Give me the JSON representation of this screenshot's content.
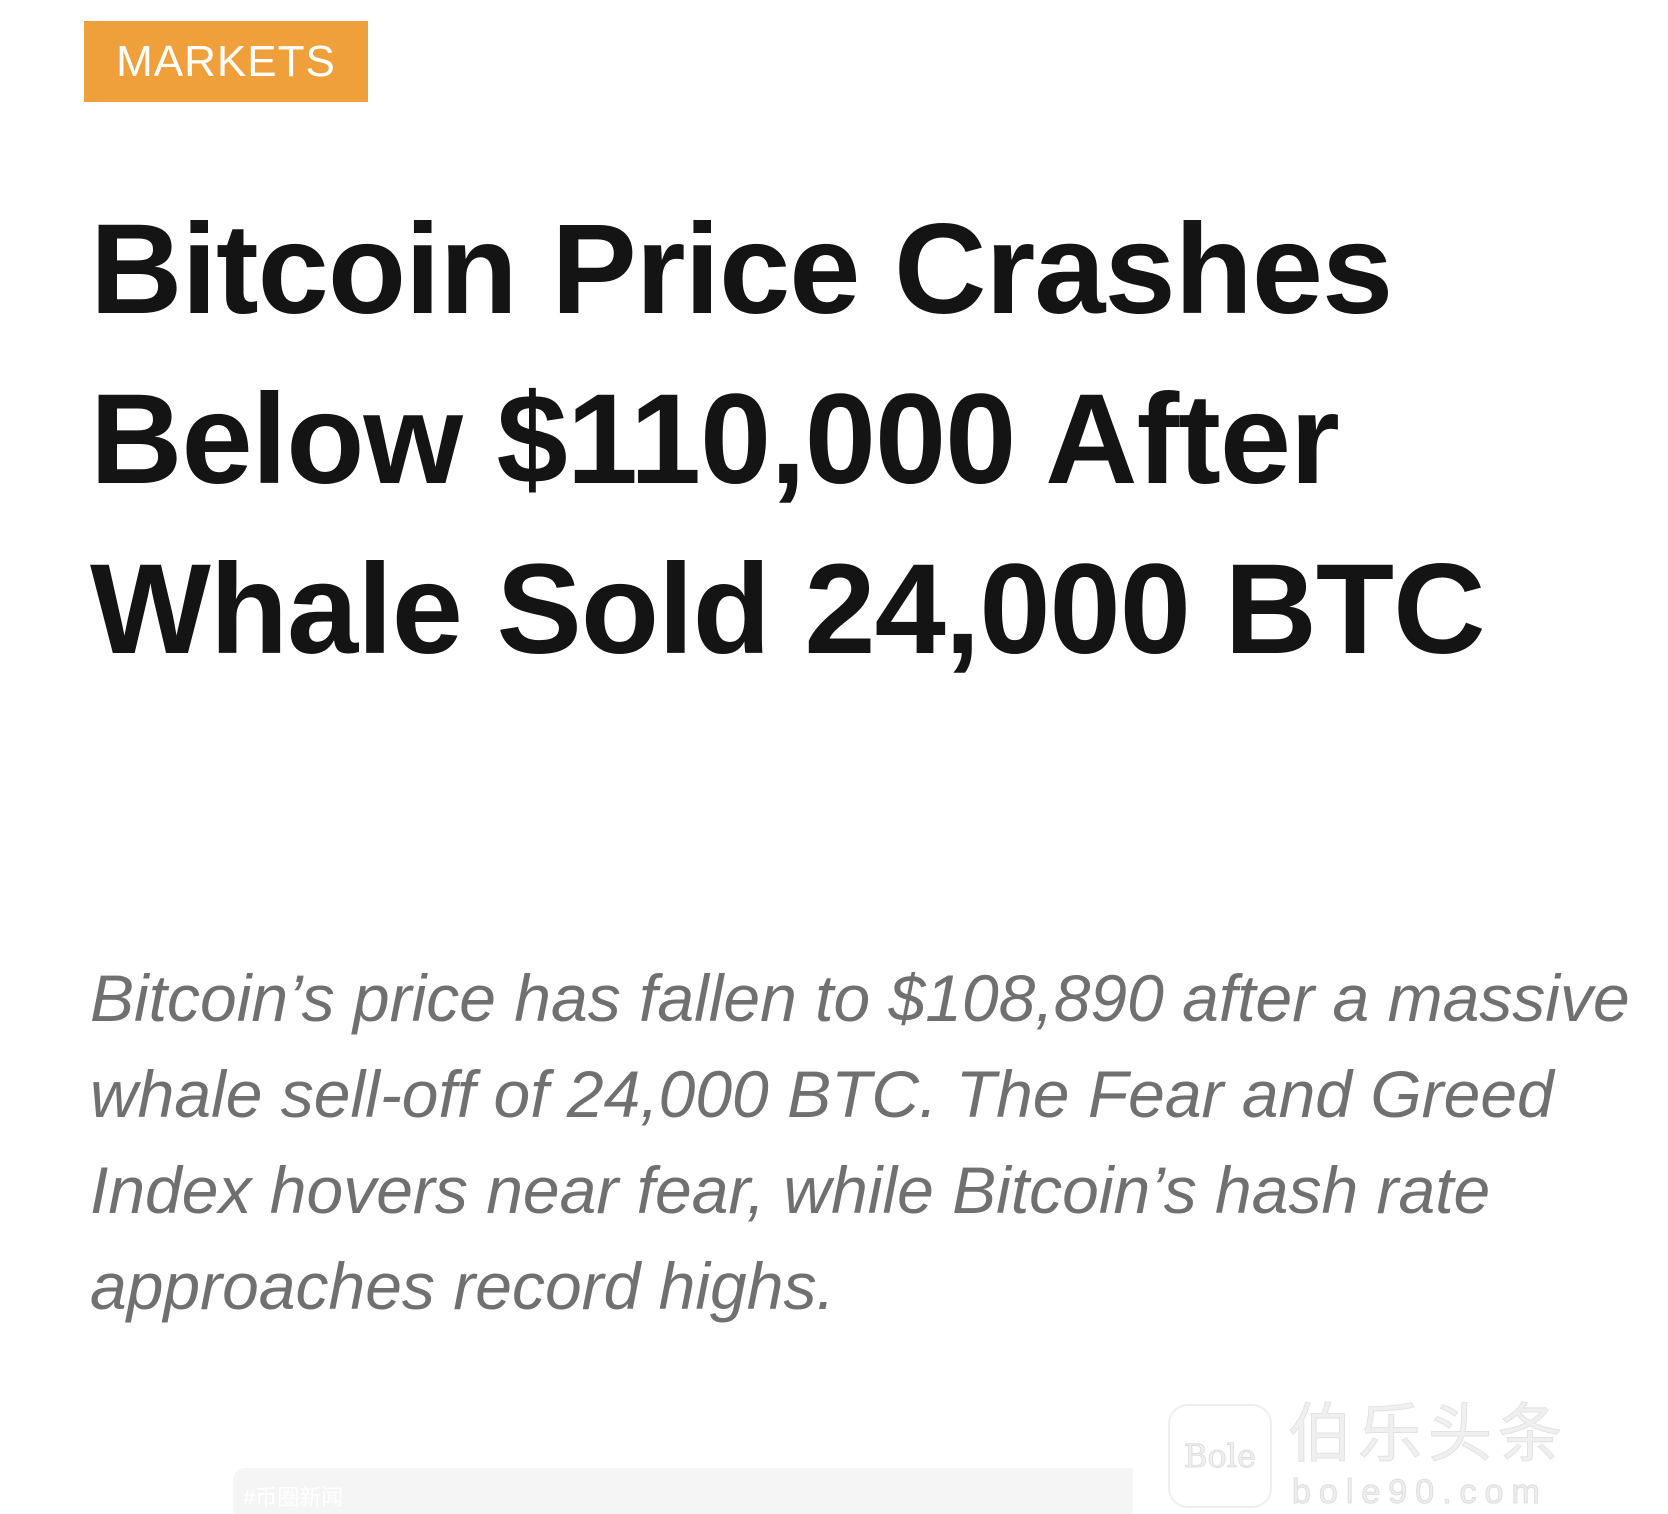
{
  "category": {
    "label": "MARKETS",
    "color": "#f0a03a"
  },
  "article": {
    "headline": "Bitcoin Price Crashes Below $110,000 After Whale Sold 24,000 BTC",
    "summary": "Bitcoin’s price has fallen to $108,890 after a massive whale sell-off of 24,000 BTC. The Fear and Greed Index hovers near fear, while Bitcoin’s hash rate approaches record highs."
  },
  "tag": {
    "label": "#币圈新闻"
  },
  "watermark": {
    "logo_text": "Bole",
    "name": "伯乐头条",
    "url": "bole90.com"
  }
}
